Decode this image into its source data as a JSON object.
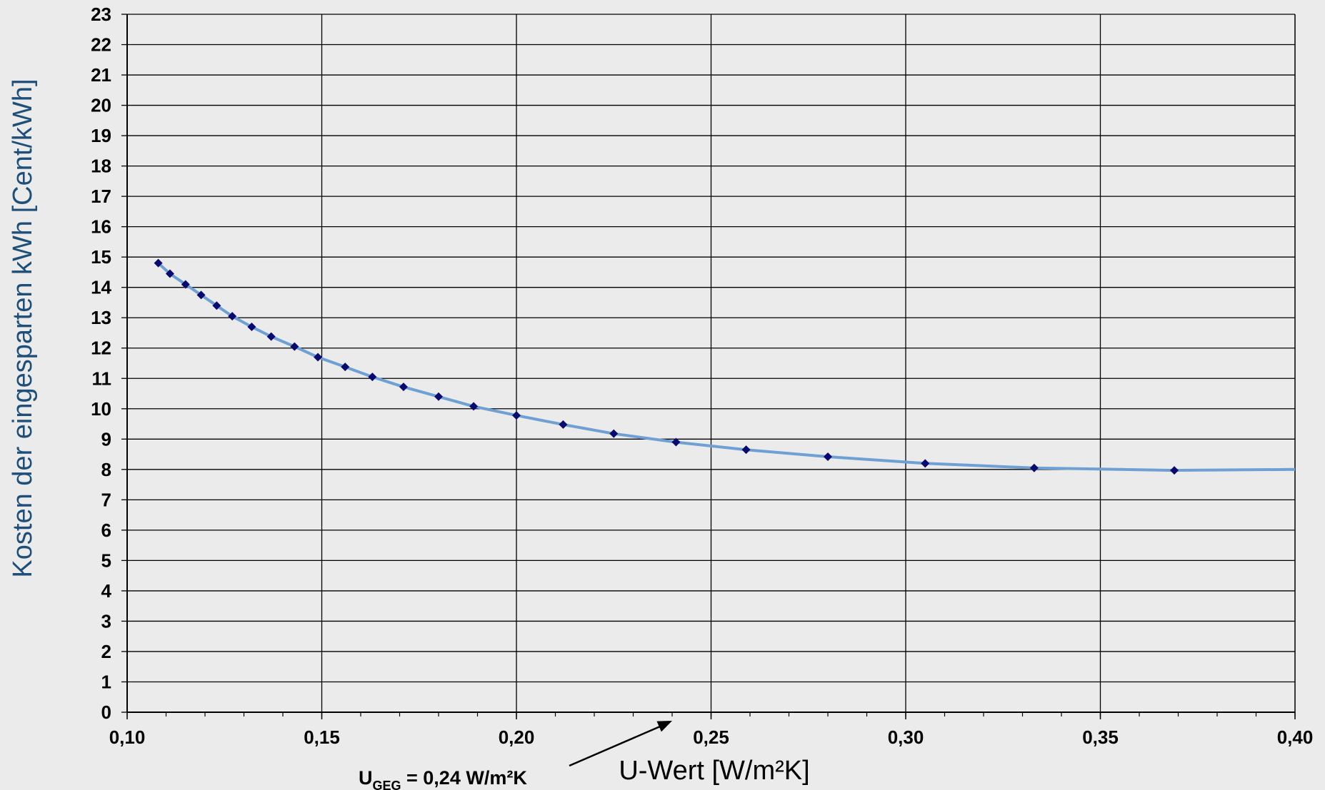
{
  "chart_data": {
    "type": "line",
    "title": "",
    "xlabel": "U-Wert [W/m²K]",
    "ylabel": "Kosten der eingesparten  kWh [Cent/kWh]",
    "xlim": [
      0.1,
      0.4
    ],
    "ylim": [
      0,
      23
    ],
    "x_ticks": [
      "0,10",
      "0,15",
      "0,20",
      "0,25",
      "0,30",
      "0,35",
      "0,40"
    ],
    "x_tick_values": [
      0.1,
      0.15,
      0.2,
      0.25,
      0.3,
      0.35,
      0.4
    ],
    "x_minor_step": 0.01,
    "y_ticks": [
      "0",
      "1",
      "2",
      "3",
      "4",
      "5",
      "6",
      "7",
      "8",
      "9",
      "10",
      "11",
      "12",
      "13",
      "14",
      "15",
      "16",
      "17",
      "18",
      "19",
      "20",
      "21",
      "22",
      "23"
    ],
    "grid": true,
    "legend": "none",
    "series": [
      {
        "color": "#6fa0d4",
        "marker_color": "#0a0a6e",
        "marker": "diamond",
        "points": [
          [
            0.108,
            14.8
          ],
          [
            0.111,
            14.45
          ],
          [
            0.115,
            14.1
          ],
          [
            0.119,
            13.75
          ],
          [
            0.123,
            13.4
          ],
          [
            0.127,
            13.05
          ],
          [
            0.132,
            12.7
          ],
          [
            0.137,
            12.38
          ],
          [
            0.143,
            12.05
          ],
          [
            0.149,
            11.7
          ],
          [
            0.156,
            11.38
          ],
          [
            0.163,
            11.05
          ],
          [
            0.171,
            10.72
          ],
          [
            0.18,
            10.4
          ],
          [
            0.189,
            10.08
          ],
          [
            0.2,
            9.78
          ],
          [
            0.212,
            9.48
          ],
          [
            0.225,
            9.18
          ],
          [
            0.241,
            8.9
          ],
          [
            0.259,
            8.65
          ],
          [
            0.28,
            8.42
          ],
          [
            0.305,
            8.2
          ],
          [
            0.333,
            8.05
          ],
          [
            0.369,
            7.97
          ]
        ],
        "line_end": [
          0.4,
          8.0
        ]
      }
    ],
    "annotation": {
      "text_main": "U",
      "text_sub": "GEG",
      "text_rest": " = 0,24 W/m²K",
      "arrow_target_x": 0.24,
      "color": "#000000"
    },
    "colors": {
      "background": "#ebebeb",
      "grid": "#000000",
      "axis_title": "#1f4e79"
    }
  }
}
